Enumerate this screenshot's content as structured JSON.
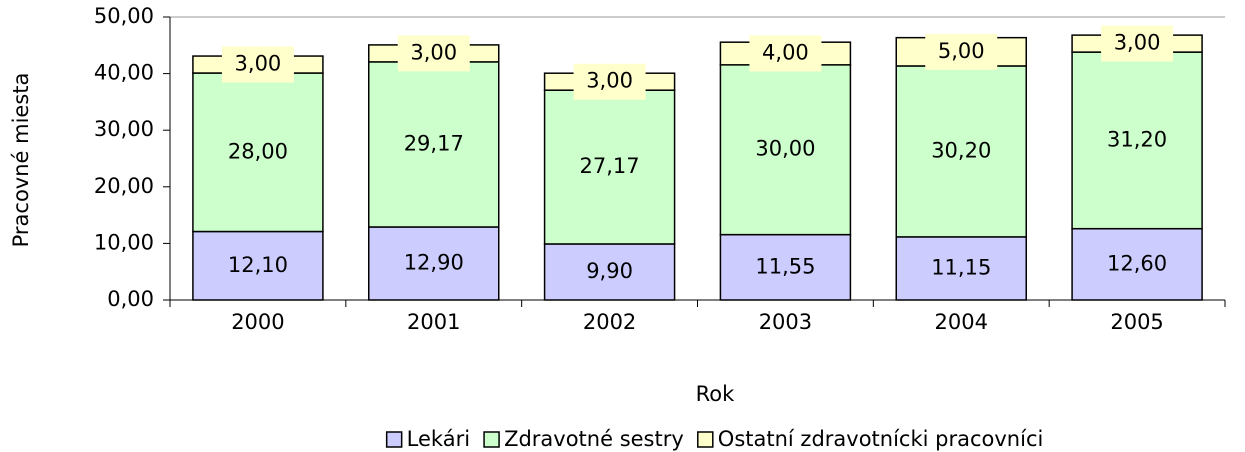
{
  "chart_data": {
    "type": "stacked_bar",
    "categories": [
      "2000",
      "2001",
      "2002",
      "2003",
      "2004",
      "2005"
    ],
    "series": [
      {
        "name": "Lekári",
        "color": "#ccccff",
        "values": [
          12.1,
          12.9,
          9.9,
          11.55,
          11.15,
          12.6
        ],
        "value_labels": [
          "12,10",
          "12,90",
          "9,90",
          "11,55",
          "11,15",
          "12,60"
        ]
      },
      {
        "name": "Zdravotné sestry",
        "color": "#ccffcc",
        "values": [
          28,
          29.17,
          27.17,
          30,
          30.2,
          31.2
        ],
        "value_labels": [
          "28,00",
          "29,17",
          "27,17",
          "30,00",
          "30,20",
          "31,20"
        ]
      },
      {
        "name": "Ostatní zdravotnícki pracovníci",
        "color": "#ffffcc",
        "values": [
          3,
          3,
          3,
          4,
          5,
          3
        ],
        "value_labels": [
          "3,00",
          "3,00",
          "3,00",
          "4,00",
          "5,00",
          "3,00"
        ]
      }
    ],
    "xlabel": "Rok",
    "ylabel": "Pracovné miesta",
    "ylim": [
      0,
      50
    ],
    "yticks": [
      {
        "value": 0,
        "label": "0,00"
      },
      {
        "value": 10,
        "label": "10,00"
      },
      {
        "value": 20,
        "label": "20,00"
      },
      {
        "value": 30,
        "label": "30,00"
      },
      {
        "value": 40,
        "label": "40,00"
      },
      {
        "value": 50,
        "label": "50,00"
      }
    ],
    "grid": false,
    "legend": "bottom"
  }
}
